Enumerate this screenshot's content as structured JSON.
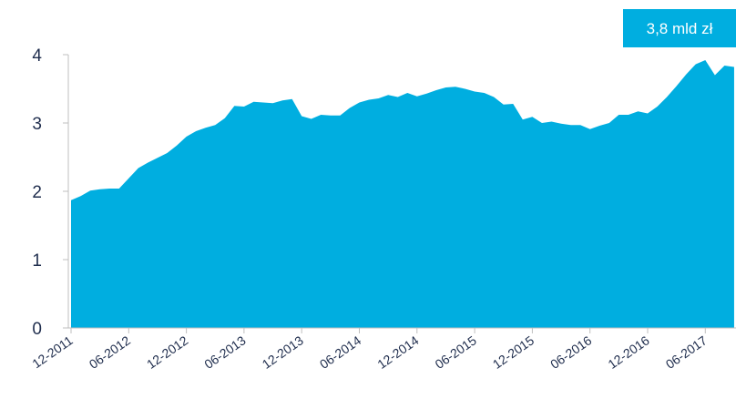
{
  "chart_data": {
    "type": "area",
    "color": "#00aee0",
    "callout": {
      "text": "3,8 mld zł",
      "color": "#00aee0",
      "text_color": "#ffffff"
    },
    "y_ticks": [
      0,
      1,
      2,
      3,
      4
    ],
    "y_tick_labels": [
      "0",
      "1",
      "2",
      "3",
      "4"
    ],
    "ylim": [
      0,
      4
    ],
    "x_tick_labels": [
      "12-2011",
      "06-2012",
      "12-2012",
      "06-2013",
      "12-2013",
      "06-2014",
      "12-2014",
      "06-2015",
      "12-2015",
      "06-2016",
      "12-2016",
      "06-2017"
    ],
    "xlabel": "",
    "ylabel": "",
    "grid": false,
    "x": [
      "12-2011",
      "01-2012",
      "02-2012",
      "03-2012",
      "04-2012",
      "05-2012",
      "06-2012",
      "07-2012",
      "08-2012",
      "09-2012",
      "10-2012",
      "11-2012",
      "12-2012",
      "01-2013",
      "02-2013",
      "03-2013",
      "04-2013",
      "05-2013",
      "06-2013",
      "07-2013",
      "08-2013",
      "09-2013",
      "10-2013",
      "11-2013",
      "12-2013",
      "01-2014",
      "02-2014",
      "03-2014",
      "04-2014",
      "05-2014",
      "06-2014",
      "07-2014",
      "08-2014",
      "09-2014",
      "10-2014",
      "11-2014",
      "12-2014",
      "01-2015",
      "02-2015",
      "03-2015",
      "04-2015",
      "05-2015",
      "06-2015",
      "07-2015",
      "08-2015",
      "09-2015",
      "10-2015",
      "11-2015",
      "12-2015",
      "01-2016",
      "02-2016",
      "03-2016",
      "04-2016",
      "05-2016",
      "06-2016",
      "07-2016",
      "08-2016",
      "09-2016",
      "10-2016",
      "11-2016",
      "12-2016",
      "01-2017",
      "02-2017",
      "03-2017",
      "04-2017",
      "05-2017",
      "06-2017",
      "07-2017",
      "08-2017",
      "09-2017"
    ],
    "values": [
      1.87,
      1.93,
      2.01,
      2.03,
      2.04,
      2.04,
      2.19,
      2.34,
      2.42,
      2.49,
      2.56,
      2.67,
      2.8,
      2.88,
      2.93,
      2.97,
      3.07,
      3.25,
      3.24,
      3.31,
      3.3,
      3.29,
      3.33,
      3.35,
      3.1,
      3.06,
      3.12,
      3.11,
      3.11,
      3.22,
      3.3,
      3.34,
      3.36,
      3.41,
      3.38,
      3.44,
      3.39,
      3.43,
      3.48,
      3.52,
      3.53,
      3.5,
      3.46,
      3.44,
      3.38,
      3.27,
      3.28,
      3.05,
      3.09,
      3.0,
      3.02,
      2.99,
      2.97,
      2.97,
      2.91,
      2.96,
      3.0,
      3.12,
      3.12,
      3.17,
      3.14,
      3.24,
      3.38,
      3.54,
      3.71,
      3.86,
      3.92,
      3.7,
      3.84,
      3.82
    ]
  }
}
